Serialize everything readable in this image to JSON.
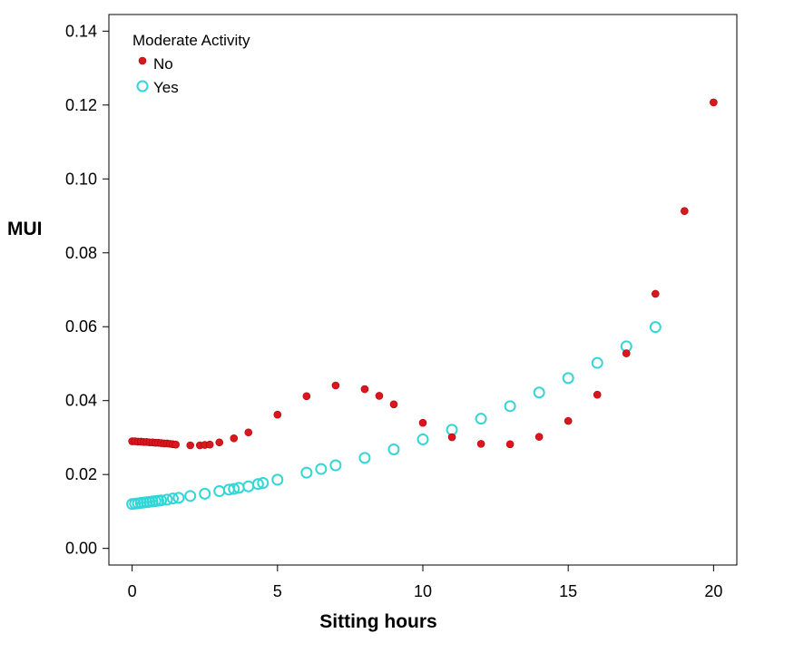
{
  "chart_data": {
    "type": "scatter",
    "title": "",
    "xlabel": "Sitting hours",
    "ylabel": "MUI",
    "xlim": [
      -0.8,
      20.8
    ],
    "ylim": [
      -0.0045,
      0.1445
    ],
    "xticks": [
      0,
      5,
      10,
      15,
      20
    ],
    "xtick_labels": [
      "0",
      "5",
      "10",
      "15",
      "20"
    ],
    "yticks": [
      0,
      0.02,
      0.04,
      0.06,
      0.08,
      0.1,
      0.12,
      0.14
    ],
    "ytick_labels": [
      "0.00",
      "0.02",
      "0.04",
      "0.06",
      "0.08",
      "0.10",
      "0.12",
      "0.14"
    ],
    "grid": false,
    "legend": {
      "title": "Moderate Activity",
      "position": "top-left"
    },
    "series": [
      {
        "name": "No",
        "color": "#d7191c",
        "marker": "filled-circle",
        "x": [
          0,
          0.1,
          0.2,
          0.3,
          0.4,
          0.5,
          0.6,
          0.7,
          0.8,
          0.9,
          1.0,
          1.1,
          1.2,
          1.3,
          1.4,
          1.5,
          2,
          2.33,
          2.5,
          2.67,
          3,
          3.5,
          4,
          5,
          6,
          7,
          8,
          8.5,
          9,
          10,
          11,
          12,
          13,
          14,
          15,
          16,
          17,
          18,
          19,
          20
        ],
        "y": [
          0.029,
          0.029,
          0.0289,
          0.0289,
          0.0288,
          0.0288,
          0.0287,
          0.0287,
          0.0286,
          0.0286,
          0.0285,
          0.0284,
          0.0284,
          0.0283,
          0.0282,
          0.0281,
          0.0279,
          0.0279,
          0.028,
          0.0281,
          0.0287,
          0.0298,
          0.0314,
          0.0362,
          0.0412,
          0.0441,
          0.0431,
          0.0413,
          0.039,
          0.034,
          0.0301,
          0.0283,
          0.0282,
          0.0302,
          0.0345,
          0.0416,
          0.0528,
          0.0689,
          0.0913,
          0.1207
        ]
      },
      {
        "name": "Yes",
        "color": "#33d6d6",
        "marker": "open-circle",
        "x": [
          0,
          0.1,
          0.2,
          0.3,
          0.4,
          0.5,
          0.6,
          0.7,
          0.8,
          0.9,
          1.0,
          1.2,
          1.4,
          1.6,
          2,
          2.5,
          3,
          3.33,
          3.5,
          3.67,
          4,
          4.33,
          4.5,
          5,
          6,
          6.5,
          7,
          8,
          9,
          10,
          11,
          12,
          13,
          14,
          15,
          16,
          17,
          18
        ],
        "y": [
          0.012,
          0.0121,
          0.0122,
          0.0123,
          0.0124,
          0.0125,
          0.0126,
          0.0127,
          0.0128,
          0.0129,
          0.013,
          0.0132,
          0.0135,
          0.0137,
          0.0142,
          0.0148,
          0.0155,
          0.0159,
          0.0161,
          0.0164,
          0.0168,
          0.0174,
          0.0177,
          0.0186,
          0.0205,
          0.0215,
          0.0225,
          0.0245,
          0.0268,
          0.0295,
          0.0321,
          0.0351,
          0.0385,
          0.0422,
          0.0461,
          0.0502,
          0.0547,
          0.0599
        ]
      }
    ]
  }
}
